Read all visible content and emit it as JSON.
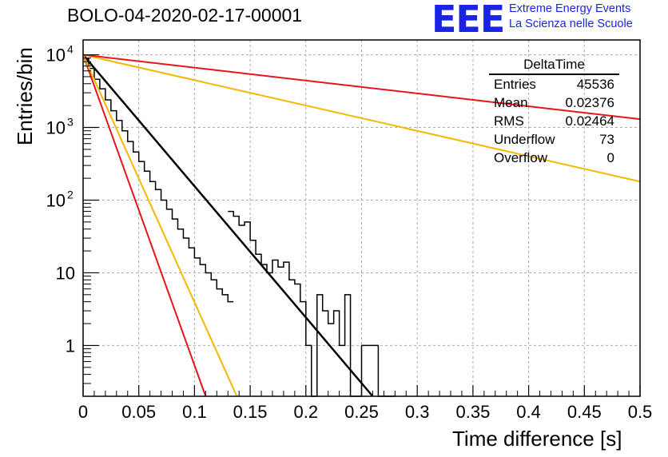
{
  "title": "BOLO-04-2020-02-17-00001",
  "logo": {
    "mark": "EEE",
    "line1": "Extreme Energy Events",
    "line2": "La Scienza nelle Scuole"
  },
  "stats": {
    "name": "DeltaTime",
    "rows": [
      {
        "label": "Entries",
        "value": "45536"
      },
      {
        "label": "Mean",
        "value": "0.02376"
      },
      {
        "label": "RMS",
        "value": "0.02464"
      },
      {
        "label": "Underflow",
        "value": "73"
      },
      {
        "label": "Overflow",
        "value": "0"
      }
    ]
  },
  "chart_data": {
    "type": "line",
    "yscale": "log",
    "xlabel": "Time difference [s]",
    "ylabel": "Entries/bin",
    "xlim": [
      0,
      0.5
    ],
    "ylim": [
      0.2,
      16000
    ],
    "grid": true,
    "x_ticks": [
      "0",
      "0.05",
      "0.1",
      "0.15",
      "0.2",
      "0.25",
      "0.3",
      "0.35",
      "0.4",
      "0.45",
      "0.5"
    ],
    "y_ticks": [
      {
        "value": 1,
        "label": "1",
        "sup": ""
      },
      {
        "value": 10,
        "label": "10",
        "sup": ""
      },
      {
        "value": 100,
        "label": "10",
        "sup": "2"
      },
      {
        "value": 1000,
        "label": "10",
        "sup": "3"
      },
      {
        "value": 10000,
        "label": "10",
        "sup": "4"
      }
    ],
    "histogram": {
      "name": "DeltaTime",
      "color": "#000000",
      "bin_width": 0.005,
      "bin_starts": [
        0,
        0.005,
        0.01,
        0.015,
        0.02,
        0.025,
        0.03,
        0.035,
        0.04,
        0.045,
        0.05,
        0.055,
        0.06,
        0.065,
        0.07,
        0.075,
        0.08,
        0.085,
        0.09,
        0.095,
        0.1,
        0.105,
        0.11,
        0.115,
        0.12,
        0.125,
        0.13,
        0.135,
        0.14,
        0.145,
        0.15,
        0.155,
        0.16,
        0.165,
        0.17,
        0.175,
        0.18,
        0.185,
        0.19,
        0.195,
        0.2,
        0.205,
        0.21,
        0.215,
        0.22,
        0.225,
        0.23,
        0.235,
        0.24,
        0.245,
        0.25,
        0.255,
        0.26,
        0.265,
        0.27
      ],
      "counts": [
        9000,
        6500,
        4600,
        3400,
        2400,
        1700,
        1250,
        900,
        640,
        460,
        340,
        250,
        180,
        140,
        100,
        75,
        55,
        40,
        30,
        22,
        16,
        13,
        10,
        8,
        6,
        5,
        4,
        3.2,
        2.5,
        2.2,
        1.6,
        1.2,
        2,
        1.5,
        1,
        1,
        1,
        0,
        0,
        0,
        0,
        0,
        0,
        0,
        0,
        0,
        0,
        0,
        0,
        0,
        0,
        0,
        0,
        0,
        0
      ]
    },
    "histogram_detail": {
      "bin_starts": [
        0.13,
        0.135,
        0.14,
        0.145,
        0.15,
        0.155,
        0.16,
        0.165,
        0.17,
        0.175,
        0.18,
        0.185,
        0.19,
        0.195,
        0.2,
        0.205,
        0.21,
        0.215,
        0.22,
        0.225,
        0.23,
        0.235,
        0.24,
        0.245,
        0.25,
        0.255,
        0.26,
        0.265,
        0.27,
        0.275
      ],
      "counts": [
        70,
        60,
        45,
        50,
        28,
        18,
        13,
        10,
        15,
        12,
        14,
        8,
        7,
        4,
        1,
        0,
        5,
        3,
        2,
        3,
        1,
        5,
        0,
        0,
        1,
        1,
        1,
        0,
        0,
        0
      ]
    },
    "series": [
      {
        "name": "fit",
        "color": "#000000",
        "x": [
          0,
          0.26
        ],
        "y": [
          10000,
          0.2
        ]
      },
      {
        "name": "red steep",
        "color": "#e8141c",
        "x": [
          0,
          0.11
        ],
        "y": [
          10000,
          0.2
        ]
      },
      {
        "name": "orange steep",
        "color": "#f5b800",
        "x": [
          0,
          0.138
        ],
        "y": [
          10000,
          0.2
        ]
      },
      {
        "name": "orange shallow",
        "color": "#f5b800",
        "x": [
          0,
          0.5
        ],
        "y": [
          10000,
          180
        ]
      },
      {
        "name": "red shallow",
        "color": "#e8141c",
        "x": [
          0,
          0.5
        ],
        "y": [
          10000,
          1300
        ]
      }
    ]
  }
}
